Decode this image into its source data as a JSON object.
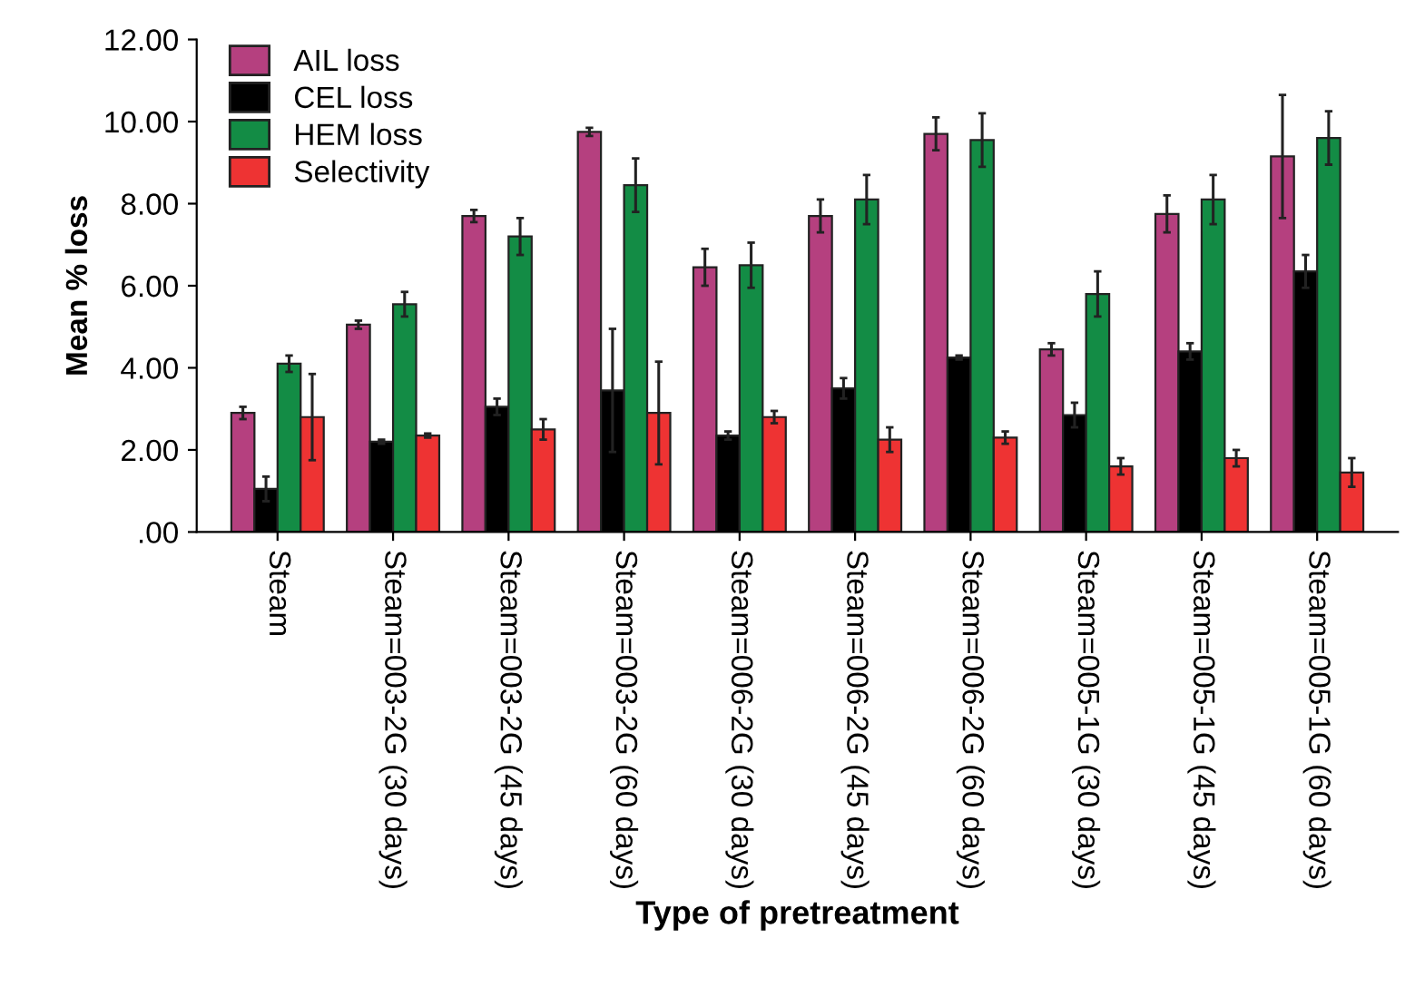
{
  "chart_data": {
    "type": "bar",
    "xlabel": "Type of pretreatment",
    "ylabel": "Mean % loss",
    "categories": [
      "Steam",
      "Steam=003-2G (30 days)",
      "Steam=003-2G (45 days)",
      "Steam=003-2G (60 days)",
      "Steam=006-2G (30 days)",
      "Steam=006-2G (45 days)",
      "Steam=006-2G (60 days)",
      "Steam=005-1G (30 days)",
      "Steam=005-1G (45 days)",
      "Steam=005-1G (60 days)"
    ],
    "series": [
      {
        "name": "AIL loss",
        "color": "#b5407f",
        "values": [
          2.9,
          5.05,
          7.7,
          9.75,
          6.45,
          7.7,
          9.7,
          4.45,
          7.75,
          9.15
        ],
        "errors": [
          0.15,
          0.1,
          0.15,
          0.1,
          0.45,
          0.4,
          0.4,
          0.15,
          0.45,
          1.5
        ]
      },
      {
        "name": "CEL loss",
        "color": "#000000",
        "values": [
          1.05,
          2.2,
          3.05,
          3.45,
          2.35,
          3.5,
          4.25,
          2.85,
          4.4,
          6.35
        ],
        "errors": [
          0.3,
          0.05,
          0.2,
          1.5,
          0.1,
          0.25,
          0.05,
          0.3,
          0.2,
          0.4
        ]
      },
      {
        "name": "HEM loss",
        "color": "#138c45",
        "values": [
          4.1,
          5.55,
          7.2,
          8.45,
          6.5,
          8.1,
          9.55,
          5.8,
          8.1,
          9.6
        ],
        "errors": [
          0.2,
          0.3,
          0.45,
          0.65,
          0.55,
          0.6,
          0.65,
          0.55,
          0.6,
          0.65
        ]
      },
      {
        "name": "Selectivity",
        "color": "#ee3333",
        "values": [
          2.8,
          2.35,
          2.5,
          2.9,
          2.8,
          2.25,
          2.3,
          1.6,
          1.8,
          1.45
        ],
        "errors": [
          1.05,
          0.05,
          0.25,
          1.25,
          0.15,
          0.3,
          0.15,
          0.2,
          0.2,
          0.35
        ]
      }
    ],
    "ylim": [
      0,
      12
    ],
    "yticks": [
      {
        "value": 0,
        "label": ".00"
      },
      {
        "value": 2,
        "label": "2.00"
      },
      {
        "value": 4,
        "label": "4.00"
      },
      {
        "value": 6,
        "label": "6.00"
      },
      {
        "value": 8,
        "label": "8.00"
      },
      {
        "value": 10,
        "label": "10.00"
      },
      {
        "value": 12,
        "label": "12.00"
      }
    ],
    "legend": "top left",
    "grid": false
  }
}
